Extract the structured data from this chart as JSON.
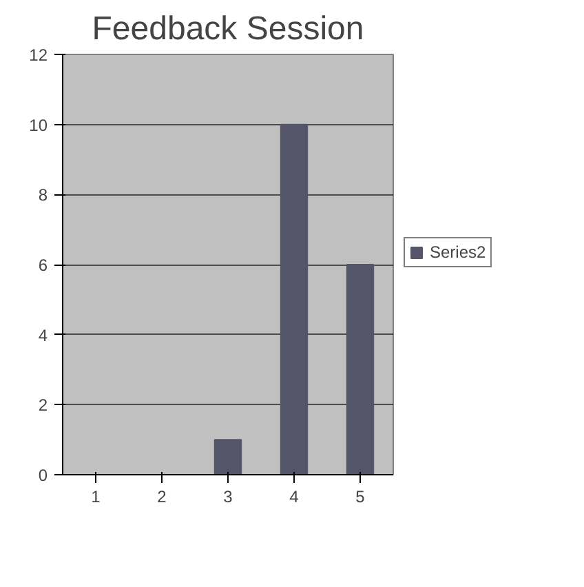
{
  "chart_data": {
    "type": "bar",
    "title": "Feedback Session",
    "categories": [
      "1",
      "2",
      "3",
      "4",
      "5"
    ],
    "series": [
      {
        "name": "Series2",
        "color": "#55556a",
        "values": [
          0,
          0,
          1,
          10,
          6
        ]
      }
    ],
    "ylim": [
      0,
      12
    ],
    "yticks": [
      0,
      2,
      4,
      6,
      8,
      10,
      12
    ],
    "grid": "y",
    "legend": "right"
  }
}
